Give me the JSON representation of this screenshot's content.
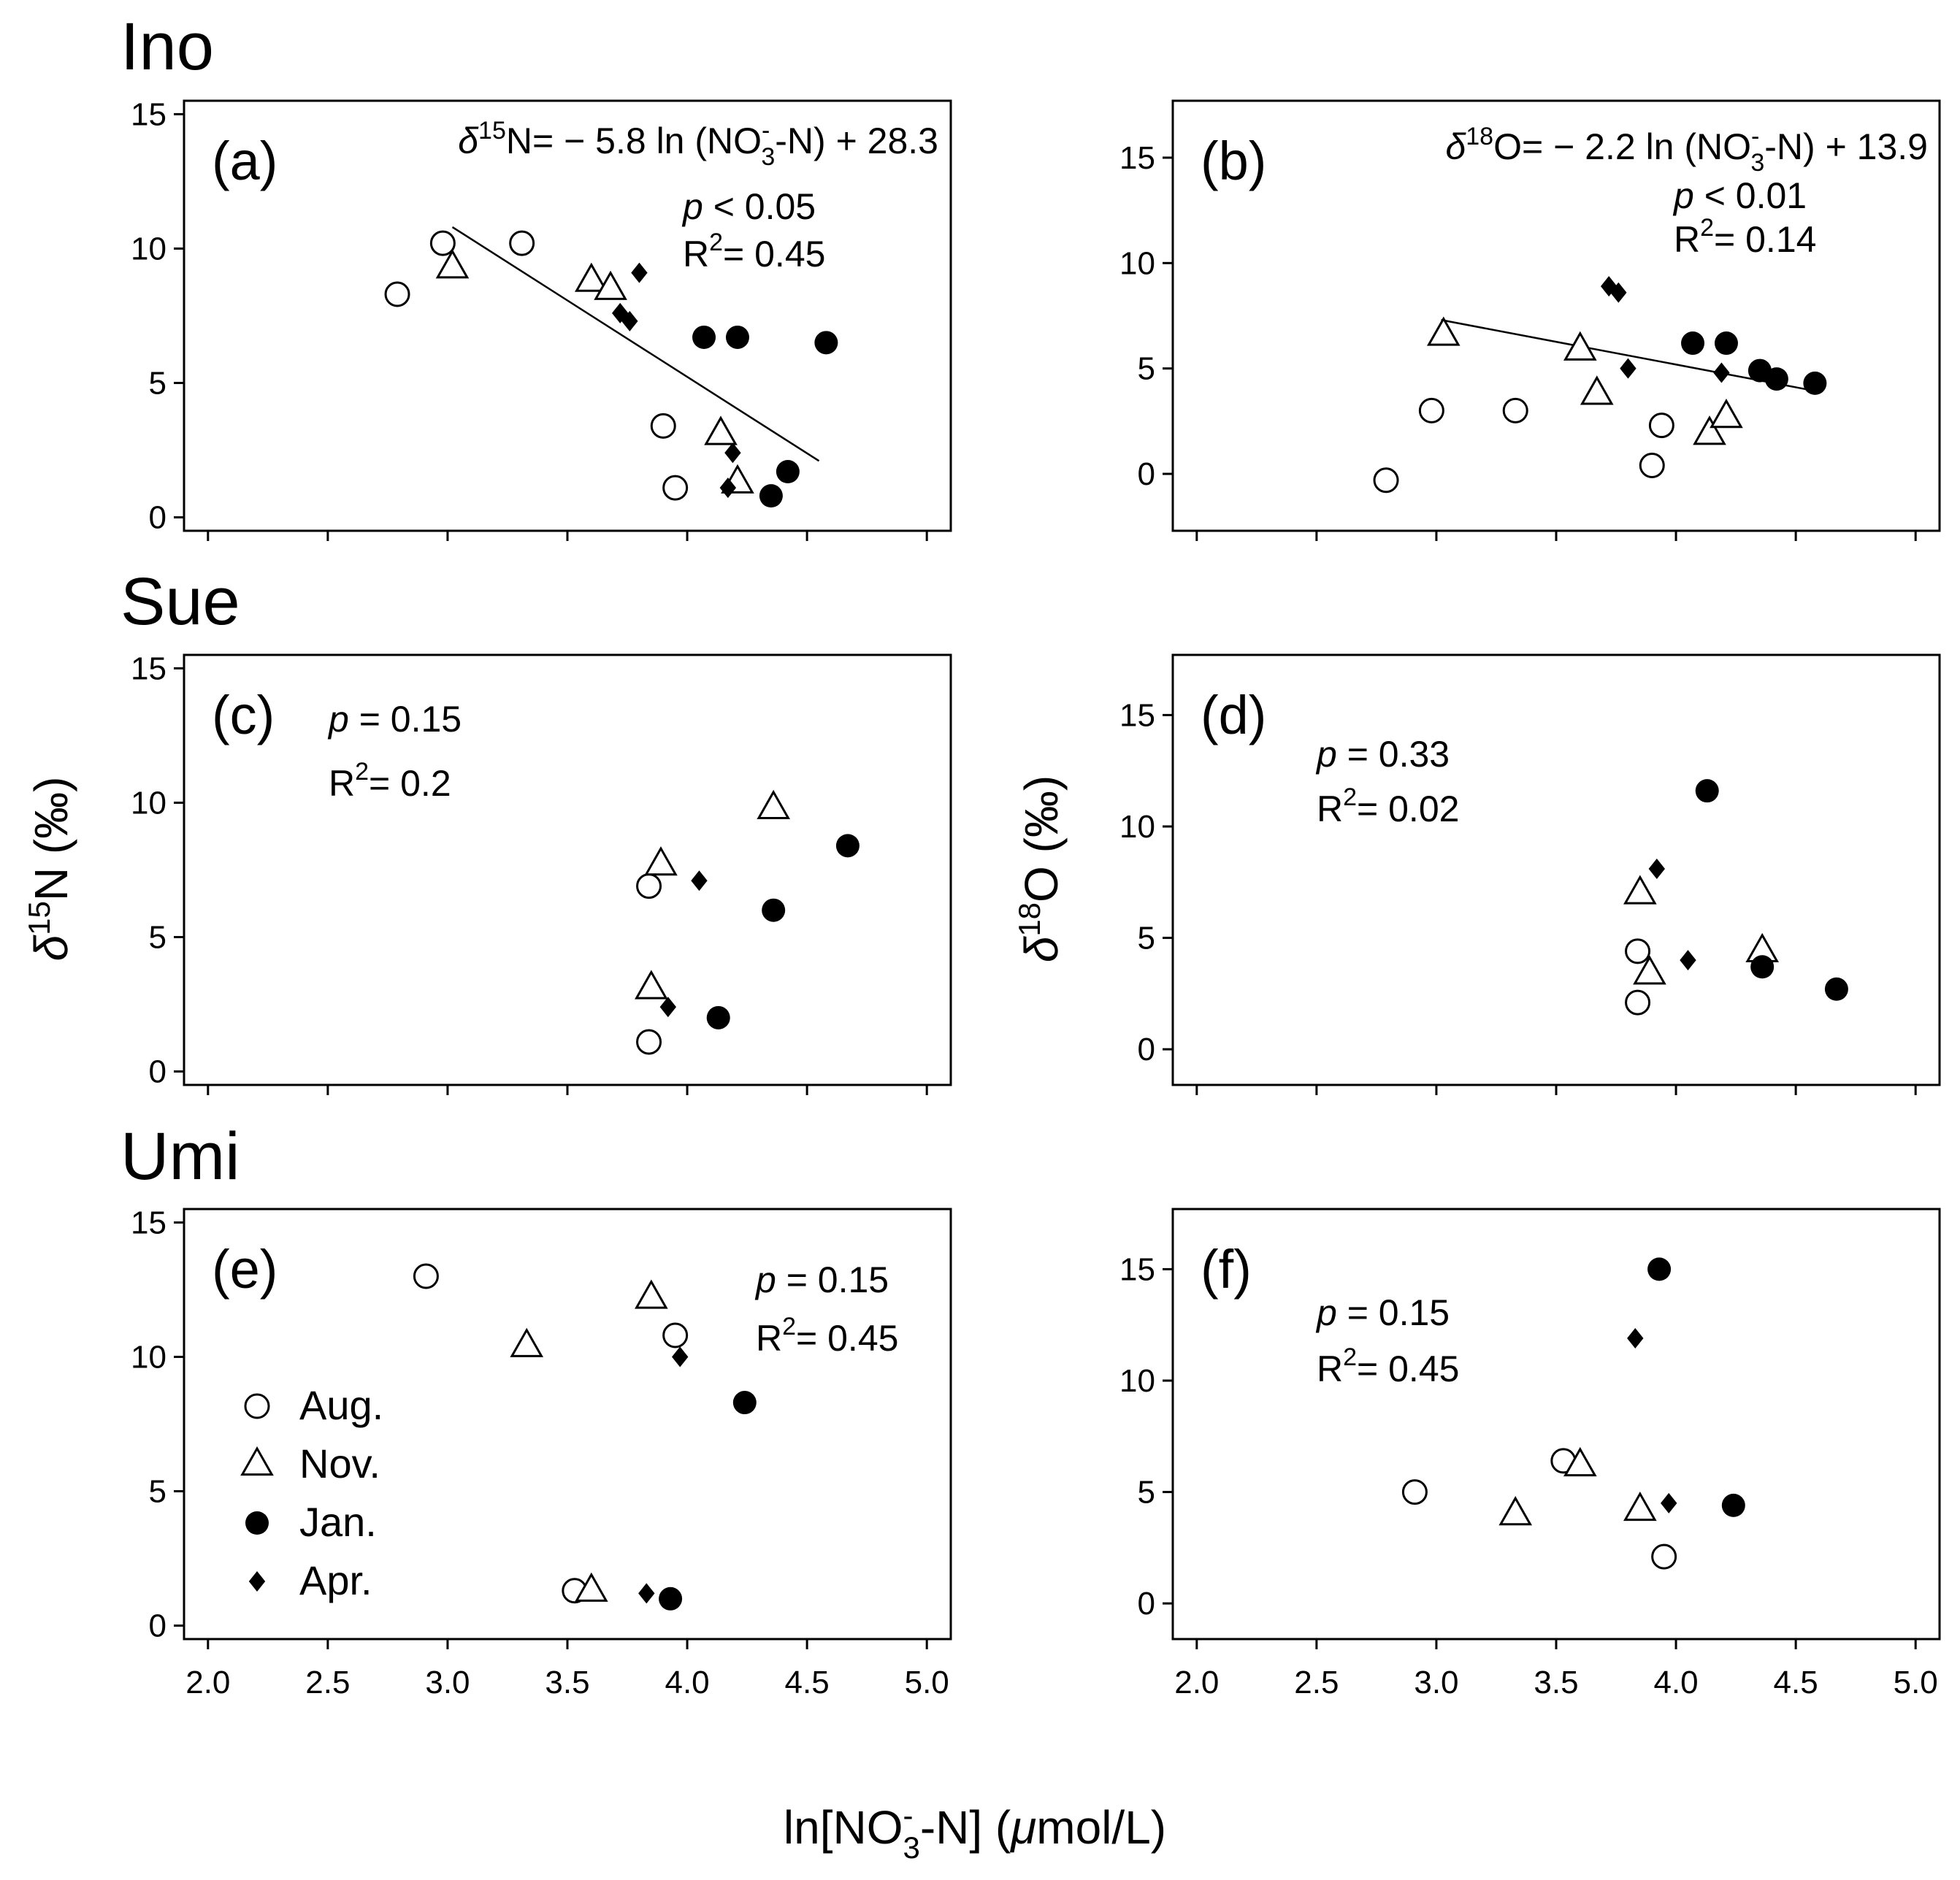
{
  "figure": {
    "xlabel": {
      "main": "ln[NO",
      "sub": "3",
      "sup": "-",
      "rest": "-N] (",
      "mu": "μ",
      "unit": "mol/L)"
    },
    "ylabel_n": {
      "delta": "δ",
      "sup": "15",
      "rest": "N (‰)"
    },
    "ylabel_o": {
      "delta": "δ",
      "sup": "18",
      "rest": "O (‰)"
    },
    "sites": [
      "Ino",
      "Sue",
      "Umi"
    ]
  },
  "legend": [
    {
      "label": "Aug.",
      "marker": "open-circle"
    },
    {
      "label": "Nov.",
      "marker": "open-triangle"
    },
    {
      "label": "Jan.",
      "marker": "filled-circle"
    },
    {
      "label": "Apr.",
      "marker": "filled-diamond"
    }
  ],
  "chart_data": [
    {
      "type": "scatter",
      "panel": "(a)",
      "site": "Ino",
      "isotope": "N",
      "xlim": [
        1.9,
        5.1
      ],
      "ylim": [
        -0.5,
        15.5
      ],
      "xticks": [
        2.0,
        2.5,
        3.0,
        3.5,
        4.0,
        4.5,
        5.0
      ],
      "yticks": [
        0,
        5,
        10,
        15
      ],
      "equation": {
        "lead": "δ",
        "sup": "15",
        "iso": "N= − 5.8 ln (NO",
        "sub": "3",
        "sup2": "-",
        "tail": "-N) + 28.3"
      },
      "p": "p < 0.05",
      "r2": {
        "pre": "R",
        "sup": "2",
        "post": "= 0.45"
      },
      "fit": {
        "x": [
          3.02,
          4.55
        ],
        "y": [
          10.8,
          2.1
        ]
      },
      "series": [
        {
          "name": "Aug.",
          "points": [
            [
              2.79,
              8.3
            ],
            [
              2.98,
              10.2
            ],
            [
              3.31,
              10.2
            ],
            [
              3.9,
              3.4
            ],
            [
              3.95,
              1.1
            ]
          ]
        },
        {
          "name": "Nov.",
          "points": [
            [
              3.02,
              9.3
            ],
            [
              3.6,
              8.8
            ],
            [
              3.68,
              8.5
            ],
            [
              4.14,
              3.1
            ],
            [
              4.21,
              1.3
            ]
          ]
        },
        {
          "name": "Jan.",
          "points": [
            [
              4.07,
              6.7
            ],
            [
              4.21,
              6.7
            ],
            [
              4.58,
              6.5
            ],
            [
              4.42,
              1.7
            ],
            [
              4.35,
              0.8
            ]
          ]
        },
        {
          "name": "Apr.",
          "points": [
            [
              3.8,
              9.1
            ],
            [
              3.72,
              7.6
            ],
            [
              3.76,
              7.3
            ],
            [
              4.19,
              2.4
            ],
            [
              4.17,
              1.1
            ]
          ]
        }
      ]
    },
    {
      "type": "scatter",
      "panel": "(b)",
      "site": "Ino",
      "isotope": "O",
      "xlim": [
        1.9,
        5.1
      ],
      "ylim": [
        -2.7,
        17.7
      ],
      "xticks": [
        2.0,
        2.5,
        3.0,
        3.5,
        4.0,
        4.5,
        5.0
      ],
      "yticks": [
        0,
        5,
        10,
        15
      ],
      "equation": {
        "lead": "δ",
        "sup": "18",
        "iso": "O= − 2.2 ln (NO",
        "sub": "3",
        "sup2": "-",
        "tail": "-N) + 13.9"
      },
      "p": "p < 0.01",
      "r2": {
        "pre": "R",
        "sup": "2",
        "post": "= 0.14"
      },
      "fit": {
        "x": [
          3.02,
          4.55
        ],
        "y": [
          7.3,
          4.0
        ]
      },
      "series": [
        {
          "name": "Aug.",
          "points": [
            [
              2.79,
              -0.3
            ],
            [
              2.98,
              3.0
            ],
            [
              3.33,
              3.0
            ],
            [
              3.94,
              2.3
            ],
            [
              3.9,
              0.4
            ]
          ]
        },
        {
          "name": "Nov.",
          "points": [
            [
              3.03,
              6.6
            ],
            [
              3.6,
              5.9
            ],
            [
              3.67,
              3.8
            ],
            [
              4.14,
              1.9
            ],
            [
              4.21,
              2.7
            ]
          ]
        },
        {
          "name": "Jan.",
          "points": [
            [
              4.07,
              6.2
            ],
            [
              4.21,
              6.2
            ],
            [
              4.35,
              4.9
            ],
            [
              4.42,
              4.5
            ],
            [
              4.58,
              4.3
            ]
          ]
        },
        {
          "name": "Apr.",
          "points": [
            [
              3.72,
              8.9
            ],
            [
              3.76,
              8.6
            ],
            [
              3.8,
              5.0
            ],
            [
              4.19,
              4.8
            ]
          ]
        }
      ]
    },
    {
      "type": "scatter",
      "panel": "(c)",
      "site": "Sue",
      "isotope": "N",
      "xlim": [
        1.9,
        5.1
      ],
      "ylim": [
        -0.5,
        15.5
      ],
      "xticks": [
        2.0,
        2.5,
        3.0,
        3.5,
        4.0,
        4.5,
        5.0
      ],
      "yticks": [
        0,
        5,
        10,
        15
      ],
      "p": "p = 0.15",
      "r2": {
        "pre": "R",
        "sup": "2",
        "post": "= 0.2"
      },
      "series": [
        {
          "name": "Aug.",
          "points": [
            [
              3.84,
              6.9
            ],
            [
              3.84,
              1.1
            ]
          ]
        },
        {
          "name": "Nov.",
          "points": [
            [
              3.89,
              7.7
            ],
            [
              4.36,
              9.8
            ],
            [
              3.85,
              3.1
            ]
          ]
        },
        {
          "name": "Jan.",
          "points": [
            [
              4.67,
              8.4
            ],
            [
              4.36,
              6.0
            ],
            [
              4.13,
              2.0
            ]
          ]
        },
        {
          "name": "Apr.",
          "points": [
            [
              4.05,
              7.1
            ],
            [
              3.92,
              2.4
            ]
          ]
        }
      ]
    },
    {
      "type": "scatter",
      "panel": "(d)",
      "site": "Sue",
      "isotope": "O",
      "xlim": [
        1.9,
        5.1
      ],
      "ylim": [
        -1.6,
        17.7
      ],
      "xticks": [
        2.0,
        2.5,
        3.0,
        3.5,
        4.0,
        4.5,
        5.0
      ],
      "yticks": [
        0,
        5,
        10,
        15
      ],
      "p": "p = 0.33",
      "r2": {
        "pre": "R",
        "sup": "2",
        "post": "= 0.02"
      },
      "series": [
        {
          "name": "Aug.",
          "points": [
            [
              3.84,
              4.4
            ],
            [
              3.84,
              2.1
            ]
          ]
        },
        {
          "name": "Nov.",
          "points": [
            [
              3.85,
              7.0
            ],
            [
              3.89,
              3.4
            ],
            [
              4.36,
              4.4
            ]
          ]
        },
        {
          "name": "Jan.",
          "points": [
            [
              4.13,
              11.6
            ],
            [
              4.36,
              3.7
            ],
            [
              4.67,
              2.7
            ]
          ]
        },
        {
          "name": "Apr.",
          "points": [
            [
              3.92,
              8.1
            ],
            [
              4.05,
              4.0
            ]
          ]
        }
      ]
    },
    {
      "type": "scatter",
      "panel": "(e)",
      "site": "Umi",
      "isotope": "N",
      "xlim": [
        1.9,
        5.1
      ],
      "ylim": [
        -0.5,
        15.5
      ],
      "xticks": [
        2.0,
        2.5,
        3.0,
        3.5,
        4.0,
        4.5,
        5.0
      ],
      "yticks": [
        0,
        5,
        10,
        15
      ],
      "p": "p = 0.15",
      "r2": {
        "pre": "R",
        "sup": "2",
        "post": "= 0.45"
      },
      "series": [
        {
          "name": "Aug.",
          "points": [
            [
              2.91,
              13.0
            ],
            [
              3.95,
              10.8
            ],
            [
              3.53,
              1.3
            ]
          ]
        },
        {
          "name": "Nov.",
          "points": [
            [
              3.33,
              10.4
            ],
            [
              3.85,
              12.2
            ],
            [
              3.6,
              1.3
            ]
          ]
        },
        {
          "name": "Jan.",
          "points": [
            [
              4.24,
              8.3
            ],
            [
              3.93,
              1.0
            ]
          ]
        },
        {
          "name": "Apr.",
          "points": [
            [
              3.97,
              10.0
            ],
            [
              3.83,
              1.2
            ]
          ]
        }
      ]
    },
    {
      "type": "scatter",
      "panel": "(f)",
      "site": "Umi",
      "isotope": "O",
      "xlim": [
        1.9,
        5.1
      ],
      "ylim": [
        -1.6,
        17.7
      ],
      "xticks": [
        2.0,
        2.5,
        3.0,
        3.5,
        4.0,
        4.5,
        5.0
      ],
      "yticks": [
        0,
        5,
        10,
        15
      ],
      "p": "p = 0.15",
      "r2": {
        "pre": "R",
        "sup": "2",
        "post": "= 0.45"
      },
      "series": [
        {
          "name": "Aug.",
          "points": [
            [
              2.91,
              5.0
            ],
            [
              3.53,
              6.4
            ],
            [
              3.95,
              2.1
            ]
          ]
        },
        {
          "name": "Nov.",
          "points": [
            [
              3.33,
              4.0
            ],
            [
              3.6,
              6.2
            ],
            [
              3.85,
              4.2
            ]
          ]
        },
        {
          "name": "Jan.",
          "points": [
            [
              3.93,
              15.0
            ],
            [
              4.24,
              4.4
            ]
          ]
        },
        {
          "name": "Apr.",
          "points": [
            [
              3.83,
              11.9
            ],
            [
              3.97,
              4.5
            ]
          ]
        }
      ]
    }
  ]
}
